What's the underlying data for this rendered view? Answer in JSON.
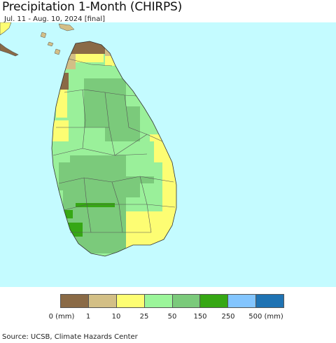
{
  "header": {
    "title": "Precipitation 1-Month (CHIRPS)",
    "subtitle": "Jul. 11 - Aug. 10, 2024 [final]"
  },
  "map": {
    "ocean_color": "#c4fbff",
    "land_color": "#9af09a",
    "boundary_color": "#555555"
  },
  "legend": {
    "colors": [
      "#8a6a46",
      "#d3bf86",
      "#fdfd73",
      "#9bf59a",
      "#7bca7b",
      "#36a714",
      "#83c5fe",
      "#1f73b3"
    ],
    "labels": [
      "0 (mm)",
      "1",
      "10",
      "25",
      "50",
      "150",
      "250",
      "500 (mm)"
    ]
  },
  "footer": {
    "source": "Source: UCSB, Climate Hazards Center"
  }
}
